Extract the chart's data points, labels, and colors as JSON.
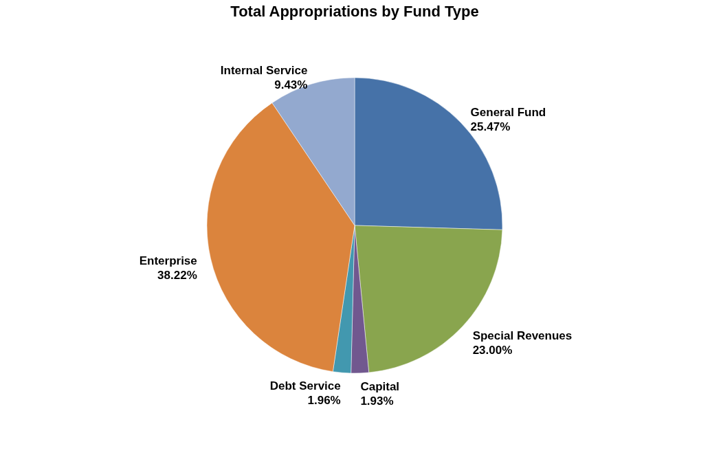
{
  "chart_data": {
    "type": "pie",
    "title": "Total Appropriations by Fund Type",
    "categories": [
      "General Fund",
      "Special Revenues",
      "Capital",
      "Debt Service",
      "Enterprise",
      "Internal Service"
    ],
    "values": [
      25.47,
      23.0,
      1.93,
      1.96,
      38.22,
      9.43
    ],
    "value_labels": [
      "25.47%",
      "23.00%",
      "1.93%",
      "1.96%",
      "38.22%",
      "9.43%"
    ],
    "colors": [
      "#4672a8",
      "#89a54e",
      "#71588f",
      "#4298af",
      "#db843d",
      "#93a9cf"
    ],
    "legend": false
  }
}
